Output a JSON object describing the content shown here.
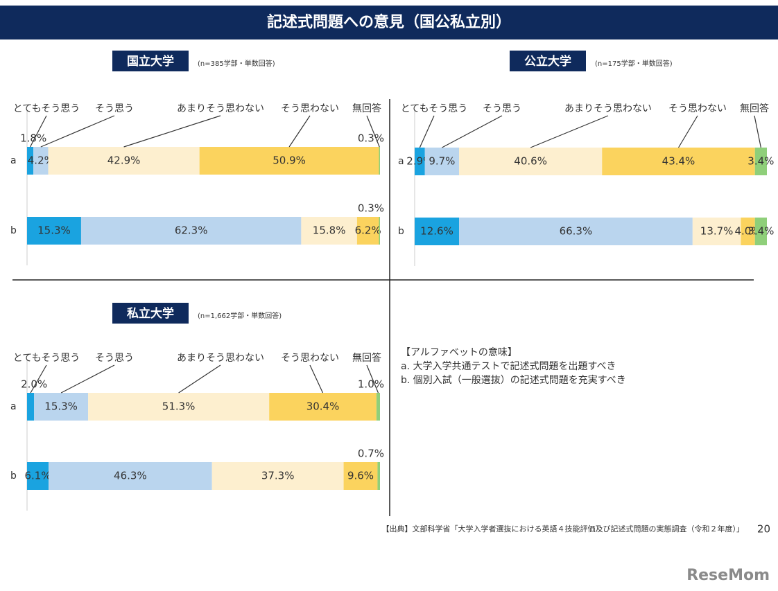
{
  "header": {
    "title": "記述式問題への意見（国公私立別）"
  },
  "chart_data": [
    {
      "type": "stacked_bar_100",
      "title": "国立大学",
      "subtitle": "(n=385学部・単数回答)",
      "categories": [
        "a",
        "b"
      ],
      "series": [
        {
          "name": "とてもそう思う",
          "color": "#1aa3e0",
          "values": [
            1.8,
            15.3
          ],
          "value_labels": [
            "1.8%",
            "15.3%"
          ]
        },
        {
          "name": "そう思う",
          "color": "#bad5ee",
          "values": [
            4.2,
            62.3
          ],
          "value_labels": [
            "4.2%",
            "62.3%"
          ]
        },
        {
          "name": "あまりそう思わない",
          "color": "#fdefcf",
          "values": [
            42.9,
            15.8
          ],
          "value_labels": [
            "42.9%",
            "15.8%"
          ]
        },
        {
          "name": "そう思わない",
          "color": "#fbd35e",
          "values": [
            50.9,
            6.2
          ],
          "value_labels": [
            "50.9%",
            "6.2%"
          ]
        },
        {
          "name": "無回答",
          "color": "#8fcf7a",
          "values": [
            0.3,
            0.3
          ],
          "value_labels": [
            "0.3%",
            "0.3%"
          ]
        }
      ]
    },
    {
      "type": "stacked_bar_100",
      "title": "公立大学",
      "subtitle": "(n=175学部・単数回答)",
      "categories": [
        "a",
        "b"
      ],
      "series": [
        {
          "name": "とてもそう思う",
          "color": "#1aa3e0",
          "values": [
            2.9,
            12.6
          ],
          "value_labels": [
            "2.9%",
            "12.6%"
          ]
        },
        {
          "name": "そう思う",
          "color": "#bad5ee",
          "values": [
            9.7,
            66.3
          ],
          "value_labels": [
            "9.7%",
            "66.3%"
          ]
        },
        {
          "name": "あまりそう思わない",
          "color": "#fdefcf",
          "values": [
            40.6,
            13.7
          ],
          "value_labels": [
            "40.6%",
            "13.7%"
          ]
        },
        {
          "name": "そう思わない",
          "color": "#fbd35e",
          "values": [
            43.4,
            4.0
          ],
          "value_labels": [
            "43.4%",
            "4.0%"
          ]
        },
        {
          "name": "無回答",
          "color": "#8fcf7a",
          "values": [
            3.4,
            3.4
          ],
          "value_labels": [
            "3.4%",
            "3.4%"
          ]
        }
      ]
    },
    {
      "type": "stacked_bar_100",
      "title": "私立大学",
      "subtitle": "(n=1,662学部・単数回答)",
      "categories": [
        "a",
        "b"
      ],
      "series": [
        {
          "name": "とてもそう思う",
          "color": "#1aa3e0",
          "values": [
            2.0,
            6.1
          ],
          "value_labels": [
            "2.0%",
            "6.1%"
          ]
        },
        {
          "name": "そう思う",
          "color": "#bad5ee",
          "values": [
            15.3,
            46.3
          ],
          "value_labels": [
            "15.3%",
            "46.3%"
          ]
        },
        {
          "name": "あまりそう思わない",
          "color": "#fdefcf",
          "values": [
            51.3,
            37.3
          ],
          "value_labels": [
            "51.3%",
            "37.3%"
          ]
        },
        {
          "name": "そう思わない",
          "color": "#fbd35e",
          "values": [
            30.4,
            9.6
          ],
          "value_labels": [
            "30.4%",
            "9.6%"
          ]
        },
        {
          "name": "無回答",
          "color": "#8fcf7a",
          "values": [
            1.0,
            0.7
          ],
          "value_labels": [
            "1.0%",
            "0.7%"
          ]
        }
      ]
    }
  ],
  "note": {
    "heading": "【アルファベットの意味】",
    "lines": [
      "a. 大学入学共通テストで記述式問題を出題すべき",
      "b. 個別入試（一般選抜）の記述式問題を充実すべき"
    ]
  },
  "footer": {
    "source": "【出典】文部科学省「大学入学者選抜における英語４技能評価及び記述式問題の実態調査（令和２年度）」",
    "page": "20"
  },
  "watermark": "ReseMom"
}
